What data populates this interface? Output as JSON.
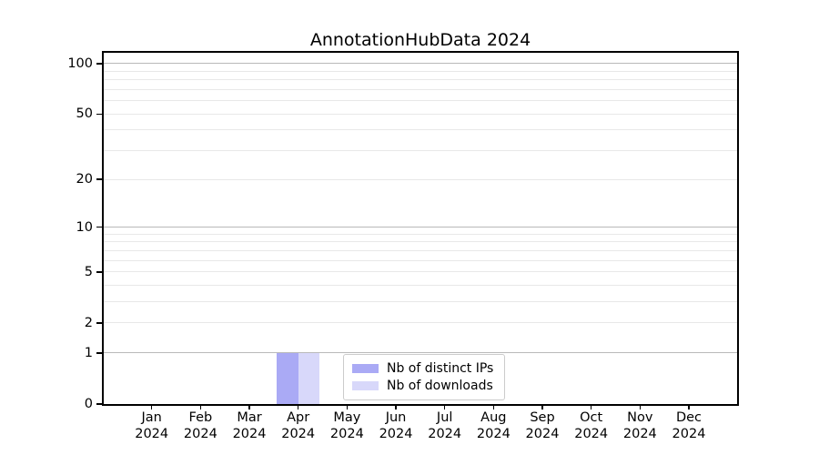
{
  "figure": {
    "title": "AnnotationHubData 2024"
  },
  "chart_data": {
    "type": "bar",
    "bar_mode": "grouped",
    "title": "AnnotationHubData 2024",
    "xlabel": "",
    "ylabel": "",
    "months": [
      "Jan",
      "Feb",
      "Mar",
      "Apr",
      "May",
      "Jun",
      "Jul",
      "Aug",
      "Sep",
      "Oct",
      "Nov",
      "Dec"
    ],
    "year_label": "2024",
    "categories": [
      "Jan 2024",
      "Feb 2024",
      "Mar 2024",
      "Apr 2024",
      "May 2024",
      "Jun 2024",
      "Jul 2024",
      "Aug 2024",
      "Sep 2024",
      "Oct 2024",
      "Nov 2024",
      "Dec 2024"
    ],
    "series": [
      {
        "name": "Nb of distinct IPs",
        "color": "#aaaaf5",
        "values": [
          0,
          0,
          0,
          1,
          0,
          0,
          0,
          0,
          0,
          0,
          0,
          0
        ]
      },
      {
        "name": "Nb of downloads",
        "color": "#d8d8fa",
        "values": [
          0,
          0,
          0,
          1,
          0,
          0,
          0,
          0,
          0,
          0,
          0,
          0
        ]
      }
    ],
    "yscale": "log1p",
    "ylim": [
      0,
      116
    ],
    "yticks": [
      0,
      1,
      2,
      5,
      10,
      20,
      50,
      100
    ],
    "ytick_labels": [
      "0",
      "1",
      "2",
      "5",
      "10",
      "20",
      "50",
      "100"
    ],
    "grid": {
      "on": true,
      "orientation": "horizontal",
      "major_values": [
        1,
        10,
        100
      ],
      "minor_values": [
        2,
        3,
        4,
        5,
        6,
        7,
        8,
        9,
        20,
        30,
        40,
        50,
        60,
        70,
        80,
        90
      ],
      "major_color": "#b9b9b9",
      "minor_color": "#e8e8e8"
    },
    "legend": {
      "position": "lower center",
      "entries": [
        "Nb of distinct IPs",
        "Nb of downloads"
      ]
    }
  }
}
